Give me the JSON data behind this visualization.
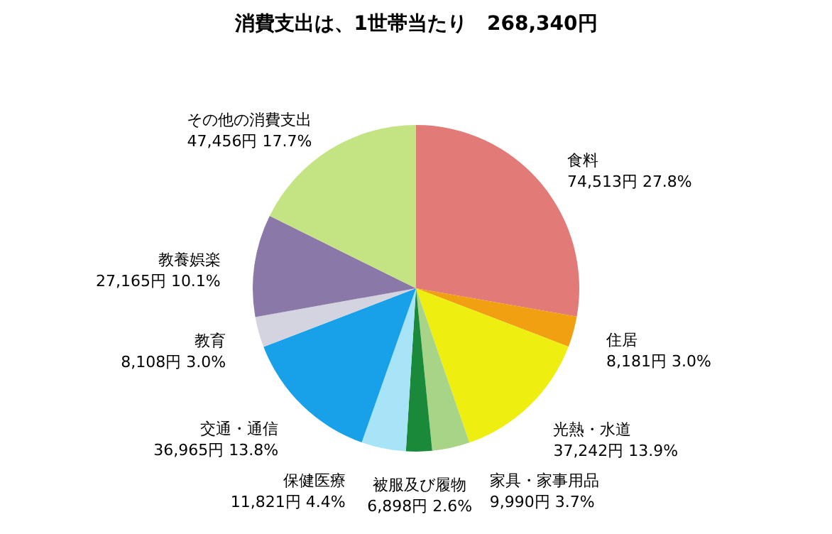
{
  "chart_data": {
    "type": "pie",
    "title": "消費支出は、1世帯当たり　268,340円",
    "categories": [
      "食料",
      "住居",
      "光熱・水道",
      "家具・家事用品",
      "被服及び履物",
      "保健医療",
      "交通・通信",
      "教育",
      "教養娯楽",
      "その他の消費支出"
    ],
    "values": [
      74513,
      8181,
      37242,
      9990,
      6898,
      11821,
      36965,
      8108,
      27165,
      47456
    ],
    "value_labels": [
      "74,513円 27.8%",
      "8,181円 3.0%",
      "37,242円 13.9%",
      "9,990円 3.7%",
      "6,898円 2.6%",
      "11,821円 4.4%",
      "36,965円 13.8%",
      "8,108円 3.0%",
      "27,165円 10.1%",
      "47,456円 17.7%"
    ],
    "colors": [
      "#e27a78",
      "#f0a010",
      "#eeee10",
      "#a8d488",
      "#1a8a3a",
      "#a8e4f8",
      "#18a0e8",
      "#d4d4e0",
      "#8a78a8",
      "#c4e484"
    ],
    "legend": false
  }
}
